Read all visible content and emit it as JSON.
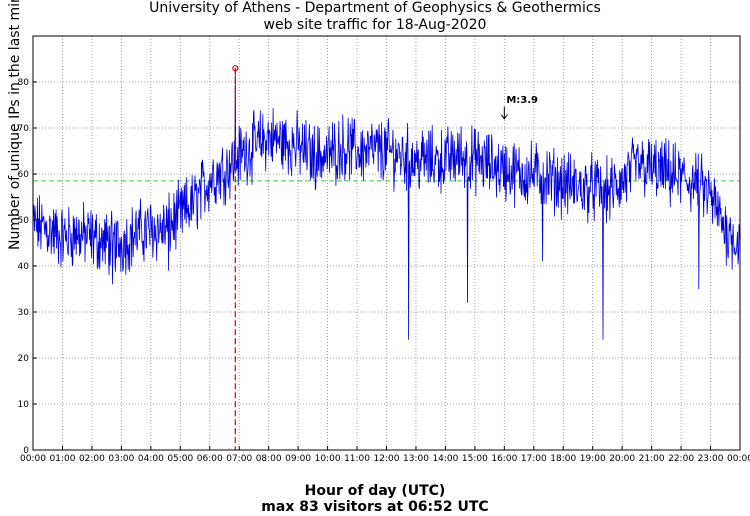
{
  "chart_data": {
    "type": "line",
    "title": "University of Athens - Department of Geophysics & Geothermics",
    "subtitle": "web site traffic for 18-Aug-2020",
    "xlabel": "Hour of day (UTC)",
    "xlabel2": "max 83 visitors at 06:52 UTC",
    "ylabel": "Number of unique IPs in the last minute",
    "xlim": [
      0,
      24
    ],
    "ylim": [
      0,
      90
    ],
    "grid": true,
    "x_ticks": [
      "00:00",
      "01:00",
      "02:00",
      "03:00",
      "04:00",
      "05:00",
      "06:00",
      "07:00",
      "08:00",
      "09:00",
      "10:00",
      "11:00",
      "12:00",
      "13:00",
      "14:00",
      "15:00",
      "16:00",
      "17:00",
      "18:00",
      "19:00",
      "20:00",
      "21:00",
      "22:00",
      "23:00",
      "00:00"
    ],
    "y_ticks": [
      0,
      10,
      20,
      30,
      40,
      50,
      60,
      70,
      80
    ],
    "mean_line": 58.5,
    "max_marker": {
      "hour": 6.867,
      "value": 83
    },
    "annotation": {
      "text": "M:3.9",
      "hour": 16.0,
      "value": 72
    },
    "series": [
      {
        "color": "#0000dd",
        "x": [
          0,
          0.5,
          1,
          1.5,
          2,
          2.5,
          3,
          3.5,
          4,
          4.5,
          5,
          5.5,
          6,
          6.5,
          7,
          7.5,
          8,
          8.5,
          9,
          9.5,
          10,
          10.5,
          11,
          11.5,
          12,
          12.5,
          13,
          13.5,
          14,
          14.5,
          15,
          15.5,
          16,
          16.5,
          17,
          17.5,
          18,
          18.5,
          19,
          19.5,
          20,
          20.5,
          21,
          21.5,
          22,
          22.5,
          23,
          23.5,
          24
        ],
        "values": [
          49,
          48,
          46,
          47,
          46,
          45,
          45,
          47,
          48,
          48,
          51,
          54,
          59,
          61,
          64,
          66,
          68,
          67,
          66,
          64,
          64,
          66,
          65,
          65,
          65,
          64,
          63,
          63,
          63,
          64,
          63,
          62,
          61,
          60,
          60,
          59,
          58,
          57,
          57,
          56,
          58,
          62,
          61,
          60,
          59,
          58,
          55,
          48,
          45
        ]
      }
    ],
    "spikes": [
      {
        "hour": 12.75,
        "value": 24
      },
      {
        "hour": 14.75,
        "value": 32
      },
      {
        "hour": 19.35,
        "value": 24
      },
      {
        "hour": 22.6,
        "value": 35
      },
      {
        "hour": 17.3,
        "value": 41
      },
      {
        "hour": 4.6,
        "value": 39
      },
      {
        "hour": 2.7,
        "value": 36
      }
    ]
  },
  "colors": {
    "series": "#0000dd",
    "mean": "#33cc33",
    "marker": "#dd0000",
    "grid": "#888888"
  }
}
